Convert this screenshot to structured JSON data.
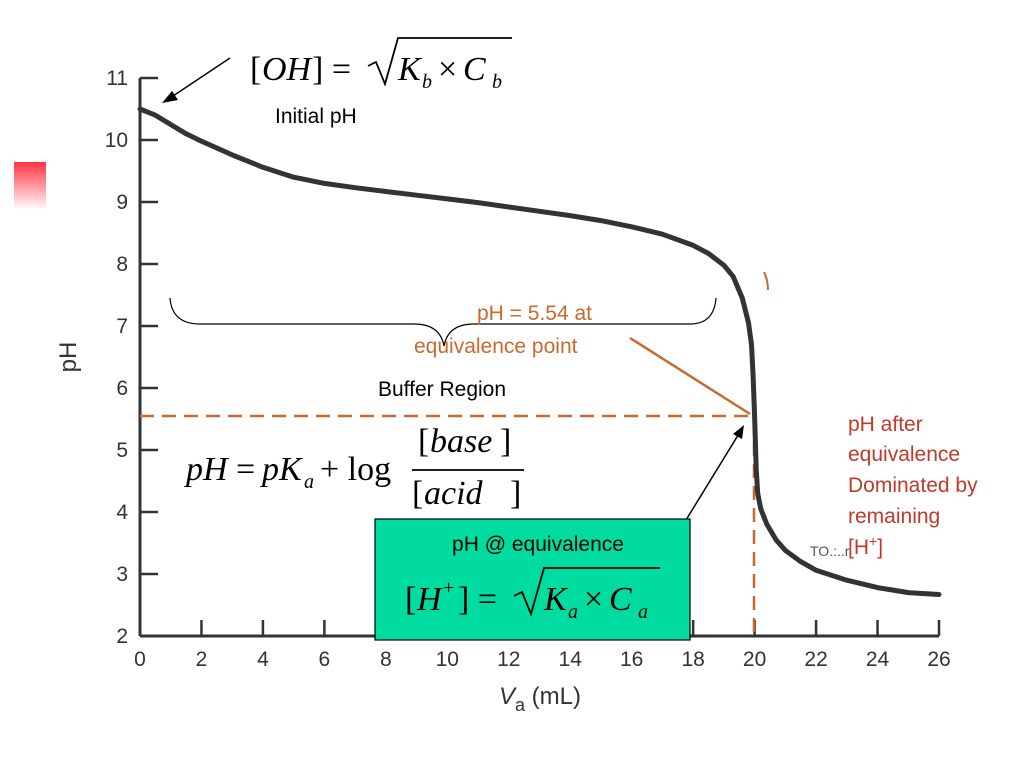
{
  "chart_data": {
    "type": "line",
    "xlabel_main": "V",
    "xlabel_sub": "a",
    "xlabel_unit": " (mL)",
    "ylabel": "pH",
    "xlim": [
      0,
      26
    ],
    "ylim": [
      2,
      11
    ],
    "x_ticks": [
      0,
      2,
      4,
      6,
      8,
      10,
      12,
      14,
      16,
      18,
      20,
      22,
      24,
      26
    ],
    "y_ticks": [
      2,
      3,
      4,
      5,
      6,
      7,
      8,
      9,
      10,
      11
    ],
    "equivalence": {
      "x": 20,
      "y": 5.54
    },
    "series": [
      {
        "x": [
          0,
          0.5,
          1,
          1.5,
          2,
          3,
          4,
          5,
          6,
          7,
          8,
          9,
          10,
          11,
          12,
          13,
          14,
          15,
          16,
          17,
          18,
          18.5,
          19,
          19.3,
          19.6,
          19.8,
          19.9,
          19.95,
          20,
          20.05,
          20.1,
          20.2,
          20.4,
          20.7,
          21,
          21.5,
          22,
          23,
          24,
          25,
          26
        ],
        "y": [
          10.5,
          10.4,
          10.25,
          10.1,
          9.98,
          9.76,
          9.56,
          9.4,
          9.3,
          9.23,
          9.17,
          9.11,
          9.05,
          8.99,
          8.92,
          8.85,
          8.78,
          8.7,
          8.6,
          8.48,
          8.3,
          8.17,
          7.98,
          7.8,
          7.45,
          7.05,
          6.7,
          6.2,
          5.54,
          4.7,
          4.3,
          4.05,
          3.8,
          3.55,
          3.38,
          3.2,
          3.06,
          2.9,
          2.78,
          2.7,
          2.67
        ]
      }
    ]
  },
  "annotations": {
    "initial_ph": "Initial pH",
    "buffer_region": "Buffer Region",
    "equiv_label_line1": "pH = 5.54 at",
    "equiv_label_line2": "equivalence point",
    "after_equiv_lines": [
      "pH after",
      "equivalence",
      "Dominated by",
      "remaining"
    ],
    "after_equiv_last": "[H",
    "after_equiv_last_sup": "+",
    "after_equiv_last_end": "]",
    "box_title": "pH @ equivalence"
  },
  "colors": {
    "curve": "#333333",
    "axis": "#333333",
    "orange": "#c8692e",
    "red_text": "#c0392b",
    "box_fill": "#00dca0",
    "red_accent": "#ff3344"
  }
}
